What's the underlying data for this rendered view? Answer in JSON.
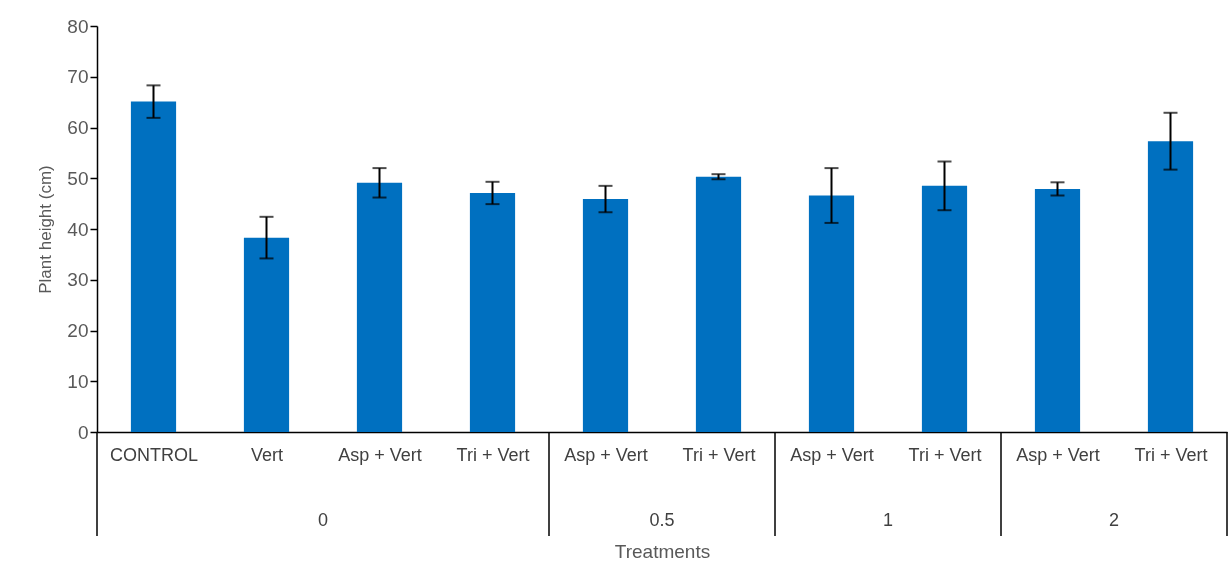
{
  "chart_data": {
    "type": "bar",
    "categories": [
      "CONTROL",
      "Vert",
      "Asp + Vert",
      "Tri + Vert",
      "Asp + Vert",
      "Tri + Vert",
      "Asp + Vert",
      "Tri + Vert",
      "Asp + Vert",
      "Tri + Vert"
    ],
    "values": [
      65.1,
      38.3,
      49.1,
      47.1,
      45.9,
      50.3,
      46.6,
      48.5,
      47.9,
      57.3
    ],
    "errors": [
      3.2,
      4.1,
      2.9,
      2.2,
      2.6,
      0.5,
      5.4,
      4.8,
      1.3,
      5.6
    ],
    "color": "#0070c0",
    "xlabel": "Treatments",
    "ylabel": "Plant height (cm)",
    "ylim": [
      0,
      80
    ],
    "yticks": [
      0,
      10,
      20,
      30,
      40,
      50,
      60,
      70,
      80
    ],
    "annotations": [
      "0",
      "0.5",
      "1",
      "2"
    ],
    "grid": false
  }
}
